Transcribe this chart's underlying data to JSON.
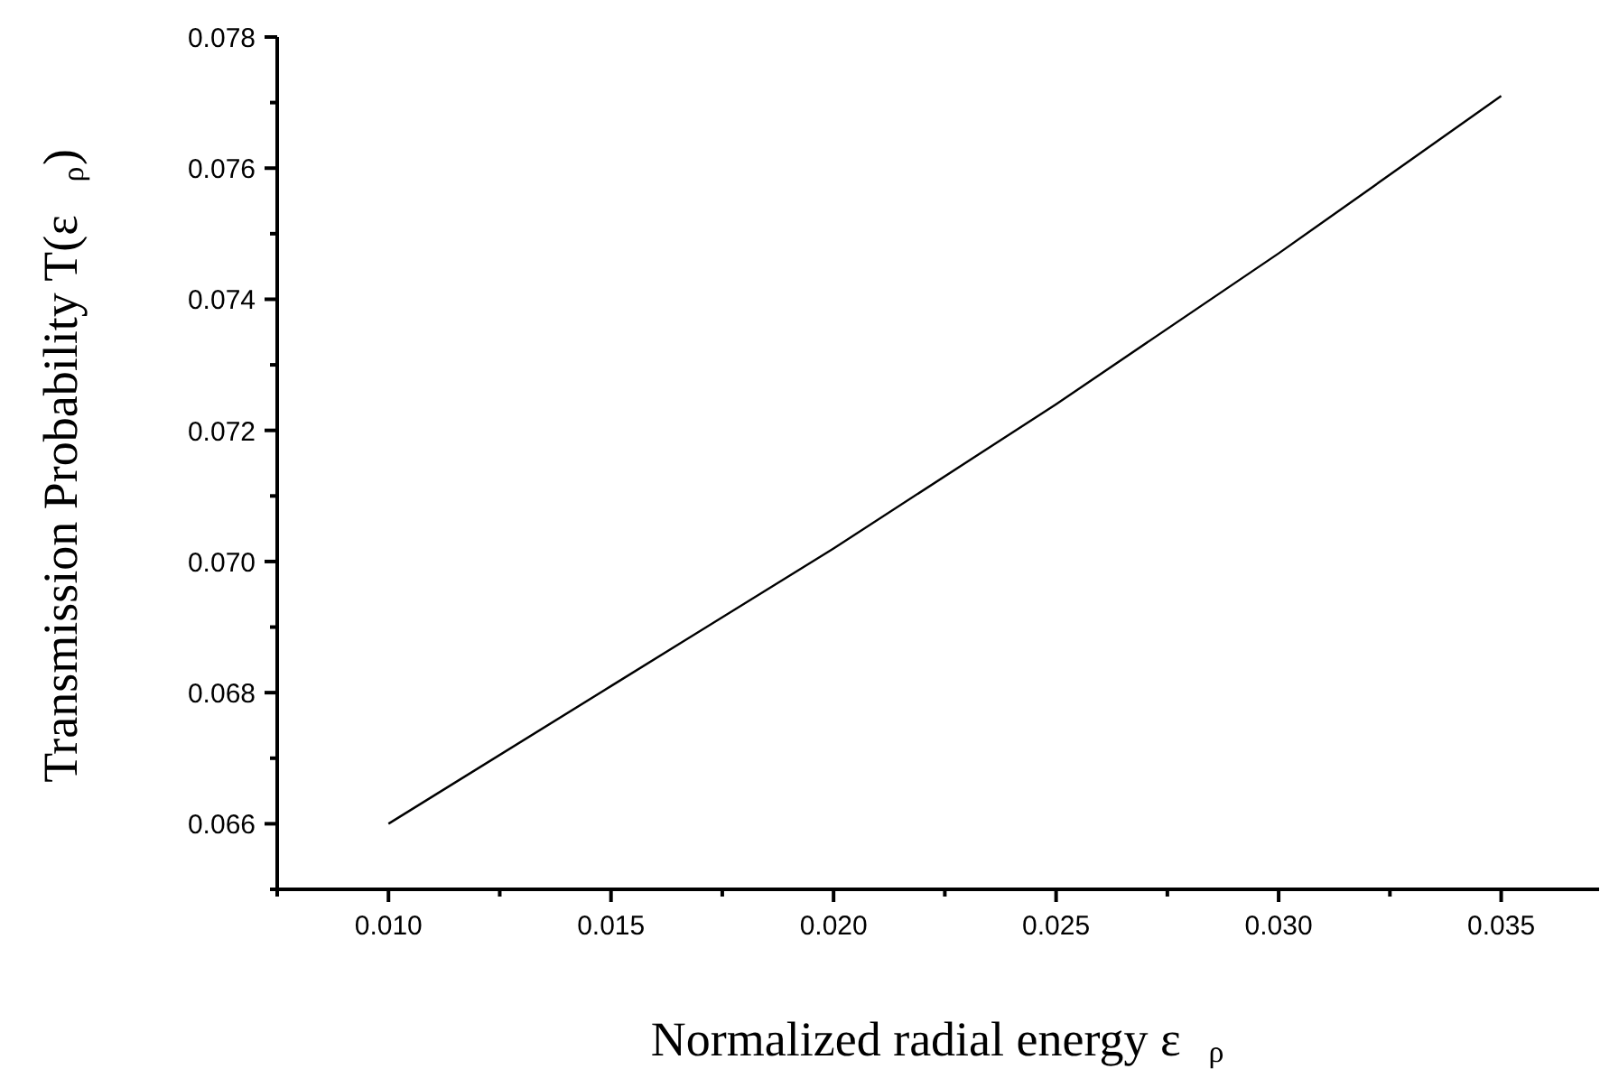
{
  "chart_data": {
    "type": "line",
    "xlabel": "Normalized radial energy ε$_{ρ}$",
    "ylabel": "Transmission Probability T(ε$_{ρ}$)",
    "x": [
      0.01,
      0.015,
      0.02,
      0.025,
      0.03,
      0.035
    ],
    "series": [
      {
        "color": "#000000",
        "values": [
          0.066,
          0.0681,
          0.0702,
          0.0724,
          0.0747,
          0.0771
        ]
      }
    ],
    "xlim": [
      0.0075,
      0.0372
    ],
    "ylim": [
      0.065,
      0.078
    ],
    "xticks": [
      {
        "value": 0.0075,
        "label": null
      },
      {
        "value": 0.01,
        "label": "0.010"
      },
      {
        "value": 0.0125,
        "label": null
      },
      {
        "value": 0.015,
        "label": "0.015"
      },
      {
        "value": 0.0175,
        "label": null
      },
      {
        "value": 0.02,
        "label": "0.020"
      },
      {
        "value": 0.0225,
        "label": null
      },
      {
        "value": 0.025,
        "label": "0.025"
      },
      {
        "value": 0.0275,
        "label": null
      },
      {
        "value": 0.03,
        "label": "0.030"
      },
      {
        "value": 0.0325,
        "label": null
      },
      {
        "value": 0.035,
        "label": "0.035"
      }
    ],
    "yticks": [
      {
        "value": 0.065,
        "label": null
      },
      {
        "value": 0.066,
        "label": "0.066"
      },
      {
        "value": 0.067,
        "label": null
      },
      {
        "value": 0.068,
        "label": "0.068"
      },
      {
        "value": 0.069,
        "label": null
      },
      {
        "value": 0.07,
        "label": "0.070"
      },
      {
        "value": 0.071,
        "label": null
      },
      {
        "value": 0.072,
        "label": "0.072"
      },
      {
        "value": 0.073,
        "label": null
      },
      {
        "value": 0.074,
        "label": "0.074"
      },
      {
        "value": 0.075,
        "label": null
      },
      {
        "value": 0.076,
        "label": "0.076"
      },
      {
        "value": 0.077,
        "label": null
      },
      {
        "value": 0.078,
        "label": "0.078"
      }
    ],
    "grid": false,
    "marker": "none",
    "line_style": "solid"
  }
}
